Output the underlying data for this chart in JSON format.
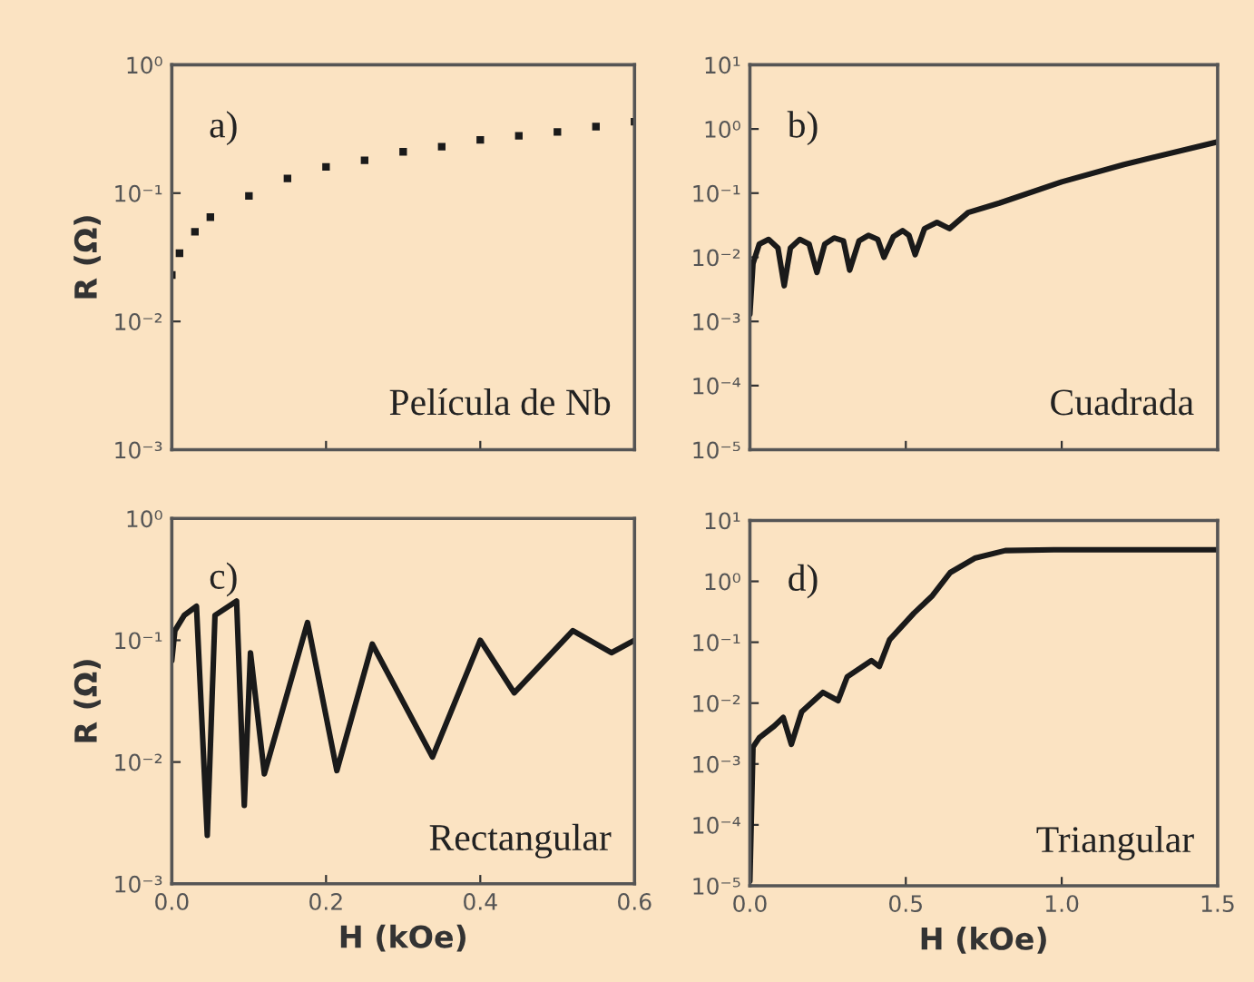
{
  "chart_data": [
    {
      "type": "scatter",
      "ylabel": "R (Ω)",
      "annotations": [
        "a)",
        "Película de Nb"
      ],
      "log": "y",
      "marker": "square",
      "tick_labels": "y",
      "xlim": [
        0,
        0.6
      ],
      "xticks": [
        {
          "value": 0,
          "label": null
        },
        {
          "value": 0.2,
          "label": null
        },
        {
          "value": 0.4,
          "label": null
        },
        {
          "value": 0.6,
          "label": null
        }
      ],
      "ylim": [
        0.001,
        1
      ],
      "yticks": [
        {
          "value": 0.001,
          "label": "10⁻³"
        },
        {
          "value": 0.01,
          "label": "10⁻²"
        },
        {
          "value": 0.1,
          "label": "10⁻¹"
        },
        {
          "value": 1,
          "label": "10⁰"
        }
      ],
      "series": [
        {
          "color": "#1a1a1a",
          "x": [
            0,
            0.01,
            0.03,
            0.05,
            0.1,
            0.15,
            0.2,
            0.25,
            0.3,
            0.35,
            0.4,
            0.45,
            0.5,
            0.55,
            0.6
          ],
          "values": [
            0.023,
            0.034,
            0.05,
            0.065,
            0.095,
            0.13,
            0.16,
            0.18,
            0.21,
            0.23,
            0.26,
            0.28,
            0.3,
            0.33,
            0.36
          ]
        }
      ]
    },
    {
      "type": "line",
      "annotations": [
        "b)",
        "Cuadrada"
      ],
      "log": "y",
      "tick_labels": "y",
      "line_style": "solid",
      "xlim": [
        0,
        1.5
      ],
      "xticks": [
        {
          "value": 0,
          "label": null
        },
        {
          "value": 0.5,
          "label": null
        },
        {
          "value": 1.0,
          "label": null
        },
        {
          "value": 1.5,
          "label": null
        }
      ],
      "ylim": [
        1e-05,
        10
      ],
      "yticks": [
        {
          "value": 1e-05,
          "label": "10⁻⁵"
        },
        {
          "value": 0.0001,
          "label": "10⁻⁴"
        },
        {
          "value": 0.001,
          "label": "10⁻³"
        },
        {
          "value": 0.01,
          "label": "10⁻²"
        },
        {
          "value": 0.1,
          "label": "10⁻¹"
        },
        {
          "value": 1,
          "label": "10⁰"
        },
        {
          "value": 10,
          "label": "10¹"
        }
      ],
      "series": [
        {
          "color": "#1a1a1a",
          "x": [
            0,
            0.01,
            0.03,
            0.06,
            0.09,
            0.11,
            0.13,
            0.16,
            0.19,
            0.215,
            0.24,
            0.27,
            0.3,
            0.32,
            0.35,
            0.38,
            0.41,
            0.43,
            0.46,
            0.49,
            0.51,
            0.53,
            0.56,
            0.6,
            0.64,
            0.7,
            0.8,
            1.0,
            1.2,
            1.5
          ],
          "values": [
            0.0013,
            0.008,
            0.016,
            0.019,
            0.014,
            0.0036,
            0.014,
            0.019,
            0.016,
            0.0058,
            0.016,
            0.02,
            0.018,
            0.0063,
            0.018,
            0.022,
            0.019,
            0.01,
            0.021,
            0.026,
            0.022,
            0.011,
            0.028,
            0.035,
            0.028,
            0.05,
            0.07,
            0.15,
            0.28,
            0.63
          ]
        }
      ]
    },
    {
      "type": "line",
      "xlabel": "H (kOe)",
      "ylabel": "R (Ω)",
      "annotations": [
        "c)",
        "Rectangular"
      ],
      "log": "y",
      "line_style": "solid",
      "xlim": [
        0,
        0.6
      ],
      "xticks": [
        {
          "value": 0,
          "label": "0.0"
        },
        0.2,
        0.4,
        0.6
      ],
      "ylim": [
        0.001,
        1
      ],
      "yticks": [
        {
          "value": 0.001,
          "label": "10⁻³"
        },
        {
          "value": 0.01,
          "label": "10⁻²"
        },
        {
          "value": 0.1,
          "label": "10⁻¹"
        },
        {
          "value": 1,
          "label": "10⁰"
        }
      ],
      "series": [
        {
          "color": "#1a1a1a",
          "x": [
            0,
            0.004,
            0.016,
            0.032,
            0.046,
            0.056,
            0.084,
            0.094,
            0.102,
            0.12,
            0.176,
            0.214,
            0.26,
            0.338,
            0.4,
            0.444,
            0.52,
            0.57,
            0.6
          ],
          "values": [
            0.068,
            0.12,
            0.16,
            0.19,
            0.0025,
            0.16,
            0.21,
            0.0044,
            0.079,
            0.008,
            0.14,
            0.0085,
            0.093,
            0.011,
            0.1,
            0.037,
            0.12,
            0.079,
            0.1
          ]
        }
      ]
    },
    {
      "type": "line",
      "xlabel": "H (kOe)",
      "annotations": [
        "d)",
        "Triangular"
      ],
      "log": "y",
      "line_style": "solid",
      "xlim": [
        0,
        1.5
      ],
      "xticks": [
        {
          "value": 0,
          "label": "0.0"
        },
        0.5,
        {
          "value": 1.0,
          "label": "1.0"
        },
        1.5
      ],
      "ylim": [
        1e-05,
        10
      ],
      "yticks": [
        {
          "value": 1e-05,
          "label": "10⁻⁵"
        },
        {
          "value": 0.0001,
          "label": "10⁻⁴"
        },
        {
          "value": 0.001,
          "label": "10⁻³"
        },
        {
          "value": 0.01,
          "label": "10⁻²"
        },
        {
          "value": 0.1,
          "label": "10⁻¹"
        },
        {
          "value": 1,
          "label": "10⁰"
        },
        {
          "value": 10,
          "label": "10¹"
        }
      ],
      "series": [
        {
          "color": "#1a1a1a",
          "x": [
            0,
            0.01,
            0.03,
            0.078,
            0.107,
            0.133,
            0.166,
            0.234,
            0.283,
            0.312,
            0.39,
            0.415,
            0.448,
            0.526,
            0.585,
            0.643,
            0.721,
            0.819,
            0.975,
            1.5
          ],
          "values": [
            1.2e-05,
            0.0019,
            0.0027,
            0.0042,
            0.0058,
            0.0021,
            0.0072,
            0.015,
            0.011,
            0.027,
            0.05,
            0.04,
            0.11,
            0.3,
            0.58,
            1.4,
            2.4,
            3.2,
            3.3,
            3.3
          ]
        }
      ]
    }
  ]
}
